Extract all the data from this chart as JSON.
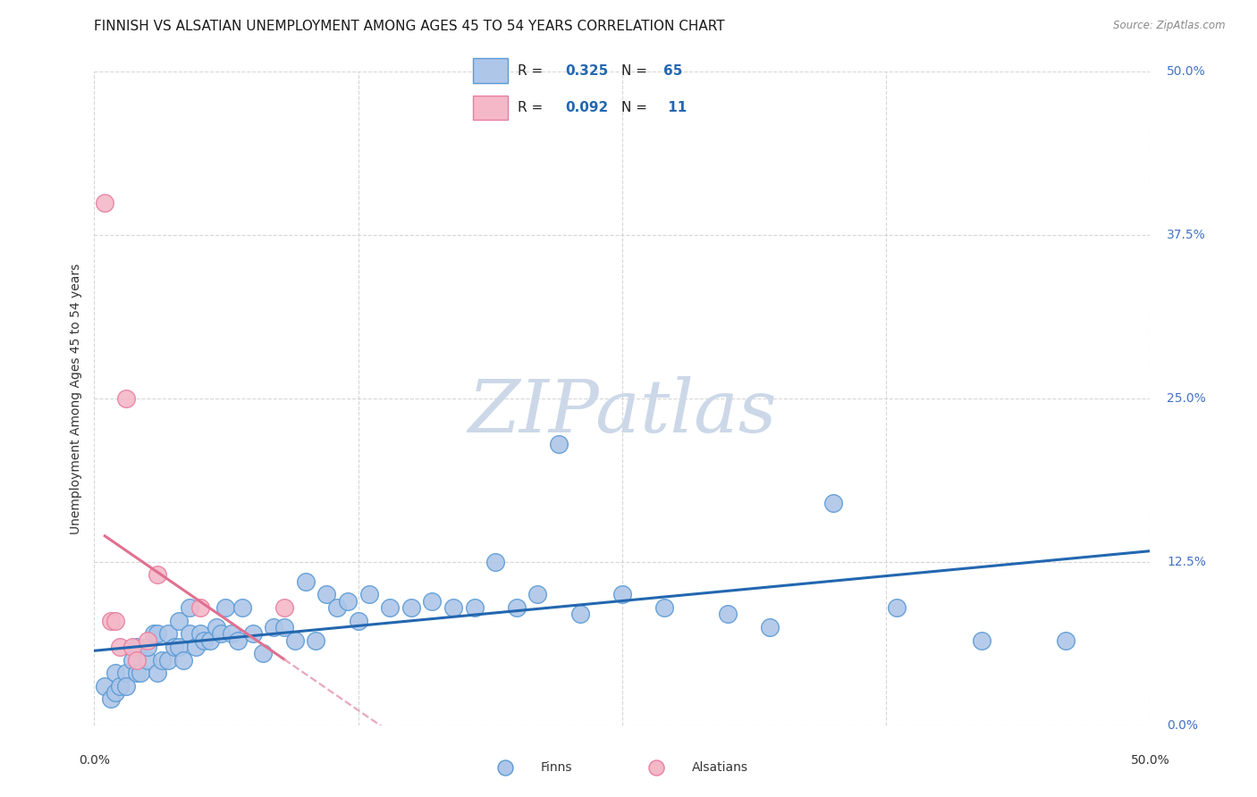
{
  "title": "FINNISH VS ALSATIAN UNEMPLOYMENT AMONG AGES 45 TO 54 YEARS CORRELATION CHART",
  "source": "Source: ZipAtlas.com",
  "ylabel": "Unemployment Among Ages 45 to 54 years",
  "xlim": [
    0.0,
    0.5
  ],
  "ylim": [
    0.0,
    0.5
  ],
  "xticks": [
    0.0,
    0.125,
    0.25,
    0.375,
    0.5
  ],
  "yticks": [
    0.0,
    0.125,
    0.25,
    0.375,
    0.5
  ],
  "right_ytick_labels": [
    "0.0%",
    "12.5%",
    "25.0%",
    "37.5%",
    "50.0%"
  ],
  "finn_color": "#aec6e8",
  "finn_edge_color": "#5b9bd5",
  "als_color": "#f4b8c8",
  "als_edge_color": "#e87fa0",
  "finn_line_color": "#2367b0",
  "als_line_color": "#e07090",
  "als_dashed_color": "#e8a8bc",
  "watermark": "ZIPatlas",
  "watermark_color": "#ccd8e8",
  "finn_points_x": [
    0.005,
    0.008,
    0.01,
    0.01,
    0.012,
    0.015,
    0.015,
    0.018,
    0.02,
    0.02,
    0.022,
    0.025,
    0.025,
    0.028,
    0.03,
    0.03,
    0.032,
    0.035,
    0.035,
    0.038,
    0.04,
    0.04,
    0.042,
    0.045,
    0.045,
    0.048,
    0.05,
    0.052,
    0.055,
    0.058,
    0.06,
    0.062,
    0.065,
    0.068,
    0.07,
    0.075,
    0.08,
    0.085,
    0.09,
    0.095,
    0.1,
    0.105,
    0.11,
    0.115,
    0.12,
    0.125,
    0.13,
    0.14,
    0.15,
    0.16,
    0.17,
    0.18,
    0.19,
    0.2,
    0.21,
    0.22,
    0.23,
    0.25,
    0.27,
    0.3,
    0.32,
    0.35,
    0.38,
    0.42,
    0.46
  ],
  "finn_points_y": [
    0.03,
    0.02,
    0.04,
    0.025,
    0.03,
    0.04,
    0.03,
    0.05,
    0.04,
    0.06,
    0.04,
    0.05,
    0.06,
    0.07,
    0.04,
    0.07,
    0.05,
    0.05,
    0.07,
    0.06,
    0.06,
    0.08,
    0.05,
    0.07,
    0.09,
    0.06,
    0.07,
    0.065,
    0.065,
    0.075,
    0.07,
    0.09,
    0.07,
    0.065,
    0.09,
    0.07,
    0.055,
    0.075,
    0.075,
    0.065,
    0.11,
    0.065,
    0.1,
    0.09,
    0.095,
    0.08,
    0.1,
    0.09,
    0.09,
    0.095,
    0.09,
    0.09,
    0.125,
    0.09,
    0.1,
    0.215,
    0.085,
    0.1,
    0.09,
    0.085,
    0.075,
    0.17,
    0.09,
    0.065,
    0.065
  ],
  "als_points_x": [
    0.005,
    0.008,
    0.01,
    0.012,
    0.015,
    0.018,
    0.02,
    0.025,
    0.03,
    0.05,
    0.09
  ],
  "als_points_y": [
    0.4,
    0.08,
    0.08,
    0.06,
    0.25,
    0.06,
    0.05,
    0.065,
    0.115,
    0.09,
    0.09
  ],
  "finn_R": 0.325,
  "als_R": 0.092,
  "finn_N": 65,
  "als_N": 11,
  "title_fontsize": 11,
  "axis_label_fontsize": 10,
  "tick_fontsize": 10,
  "legend_fontsize": 12,
  "watermark_fontsize": 60,
  "background_color": "#ffffff",
  "grid_color": "#cccccc"
}
